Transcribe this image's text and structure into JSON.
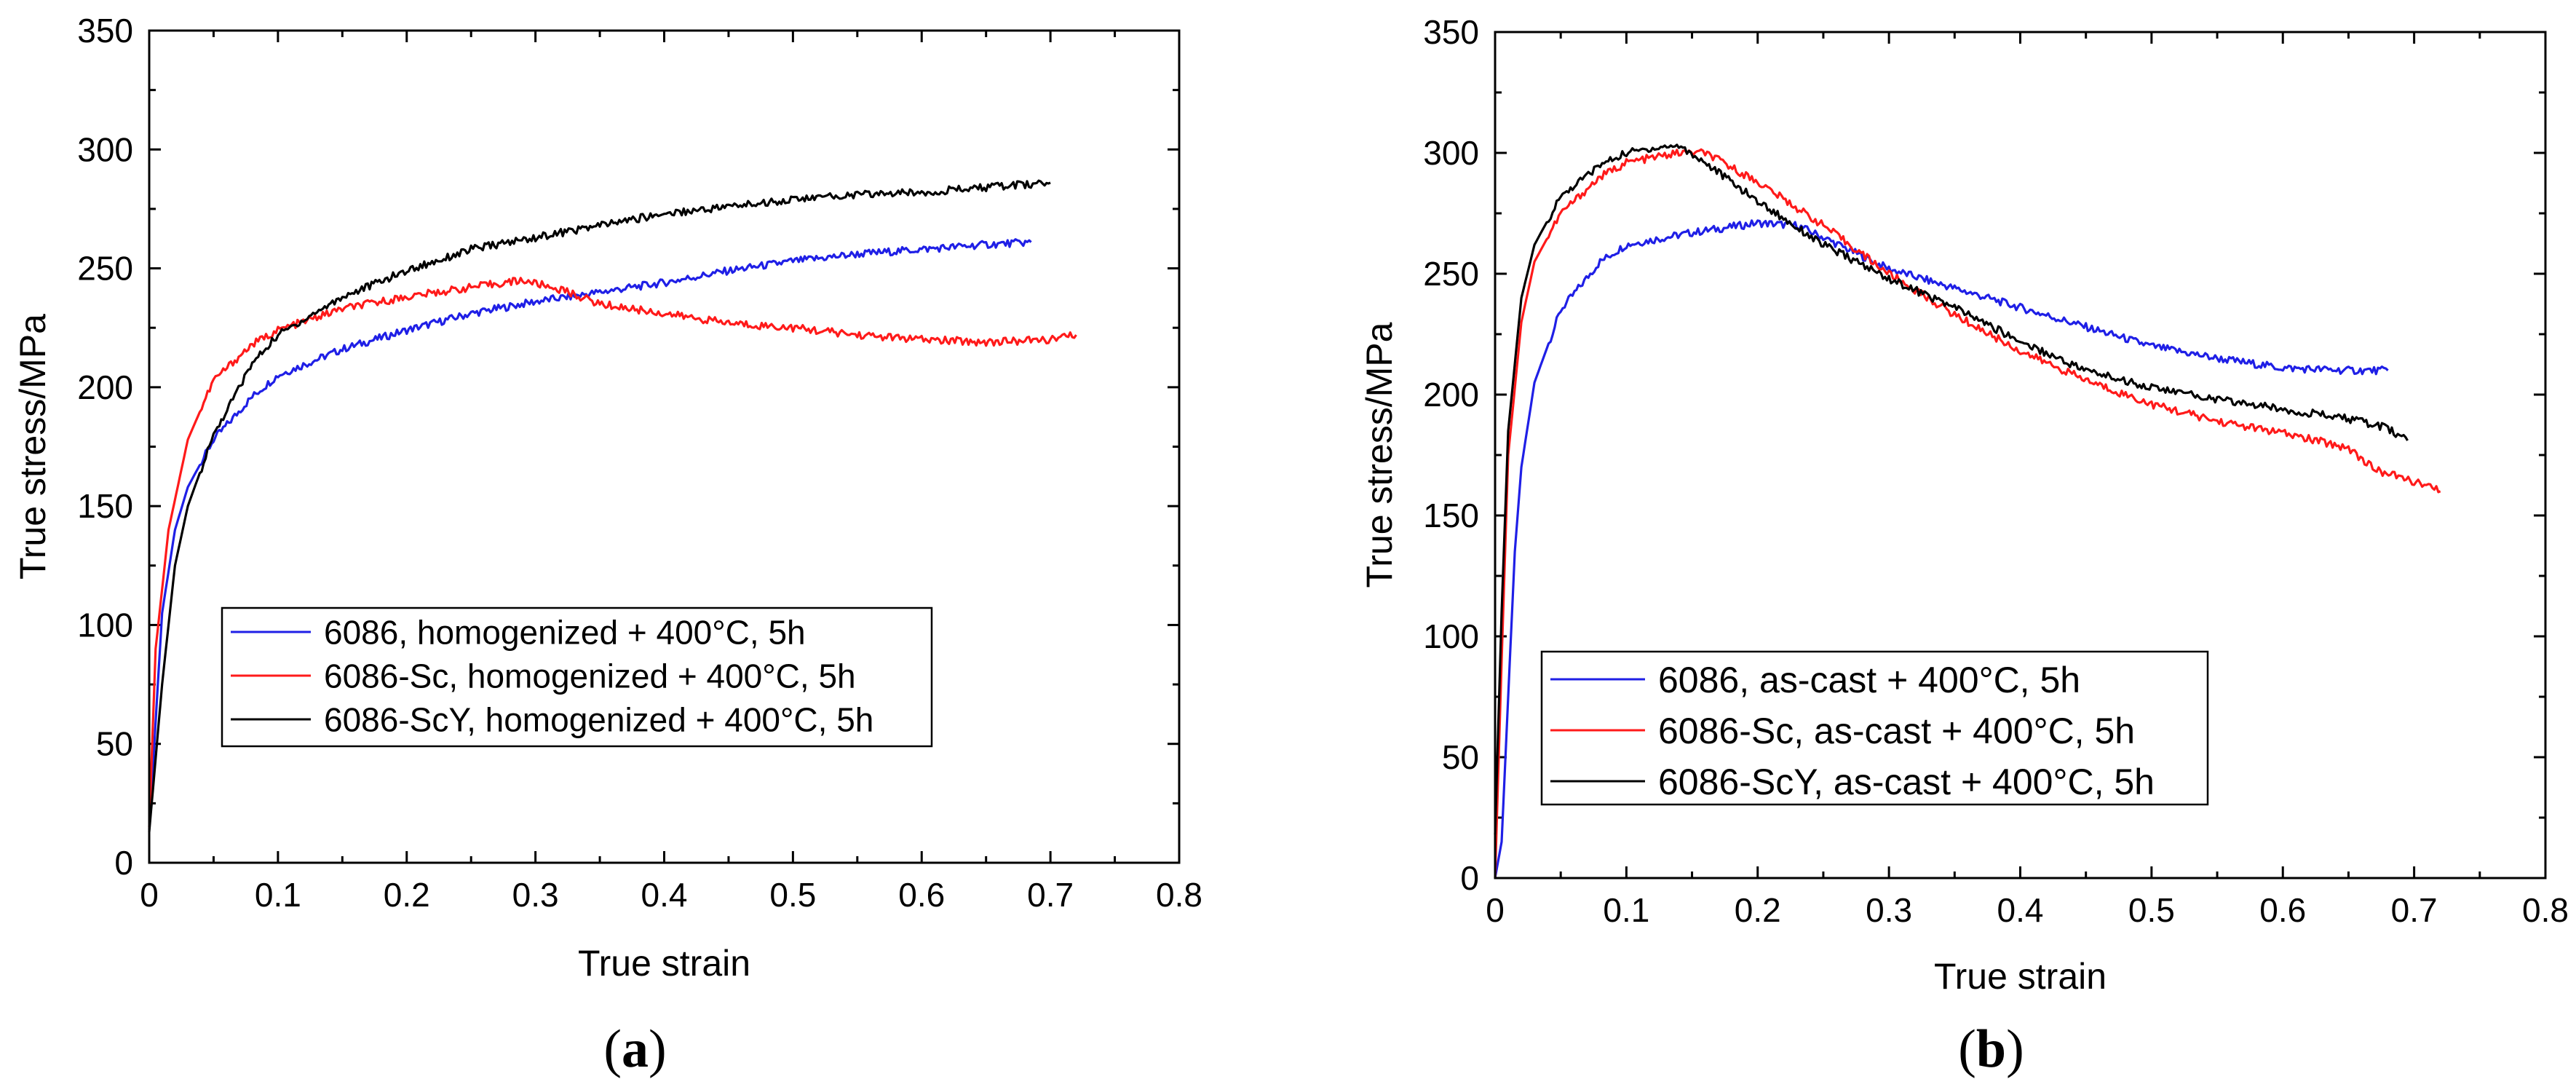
{
  "chart_data": [
    {
      "panel_label": {
        "open": "(",
        "letter": "a",
        "close": ")"
      },
      "type": "line",
      "xlabel": "True strain",
      "ylabel": "True stress/MPa",
      "xlim": [
        0,
        0.8
      ],
      "ylim": [
        0,
        350
      ],
      "xticks": [
        "0",
        "0.1",
        "0.2",
        "0.3",
        "0.4",
        "0.5",
        "0.6",
        "0.7",
        "0.8"
      ],
      "yticks": [
        "0",
        "50",
        "100",
        "150",
        "200",
        "250",
        "300",
        "350"
      ],
      "legend_position": "lower-middle",
      "series": [
        {
          "name": "6086, homogenized + 400°C, 5h",
          "color": "#1f1fe6",
          "points": [
            [
              0,
              14
            ],
            [
              0.01,
              105
            ],
            [
              0.02,
              140
            ],
            [
              0.03,
              158
            ],
            [
              0.05,
              178
            ],
            [
              0.08,
              196
            ],
            [
              0.1,
              205
            ],
            [
              0.15,
              216
            ],
            [
              0.2,
              224
            ],
            [
              0.25,
              231
            ],
            [
              0.3,
              236
            ],
            [
              0.35,
              240
            ],
            [
              0.4,
              244
            ],
            [
              0.45,
              249
            ],
            [
              0.5,
              253
            ],
            [
              0.55,
              256
            ],
            [
              0.6,
              258
            ],
            [
              0.65,
              260
            ],
            [
              0.685,
              261
            ]
          ]
        },
        {
          "name": "6086-Sc, homogenized + 400°C, 5h",
          "color": "#ff1a1a",
          "points": [
            [
              0,
              15
            ],
            [
              0.005,
              90
            ],
            [
              0.015,
              140
            ],
            [
              0.03,
              178
            ],
            [
              0.05,
              203
            ],
            [
              0.08,
              218
            ],
            [
              0.1,
              224
            ],
            [
              0.15,
              233
            ],
            [
              0.2,
              238
            ],
            [
              0.25,
              242
            ],
            [
              0.29,
              245
            ],
            [
              0.32,
              241
            ],
            [
              0.35,
              235
            ],
            [
              0.4,
              231
            ],
            [
              0.45,
              227
            ],
            [
              0.5,
              225
            ],
            [
              0.55,
              222
            ],
            [
              0.6,
              220
            ],
            [
              0.65,
              219
            ],
            [
              0.7,
              220
            ],
            [
              0.72,
              222
            ]
          ]
        },
        {
          "name": "6086-ScY, homogenized + 400°C, 5h",
          "color": "#000000",
          "points": [
            [
              0,
              13
            ],
            [
              0.01,
              75
            ],
            [
              0.02,
              125
            ],
            [
              0.03,
              150
            ],
            [
              0.05,
              180
            ],
            [
              0.08,
              210
            ],
            [
              0.1,
              222
            ],
            [
              0.15,
              238
            ],
            [
              0.2,
              249
            ],
            [
              0.25,
              258
            ],
            [
              0.3,
              263
            ],
            [
              0.35,
              268
            ],
            [
              0.4,
              273
            ],
            [
              0.45,
              276
            ],
            [
              0.5,
              279
            ],
            [
              0.55,
              281
            ],
            [
              0.6,
              282
            ],
            [
              0.65,
              284
            ],
            [
              0.7,
              286
            ]
          ]
        }
      ]
    },
    {
      "panel_label": {
        "open": "(",
        "letter": "b",
        "close": ")"
      },
      "type": "line",
      "xlabel": "True strain",
      "ylabel": "True stress/MPa",
      "xlim": [
        0,
        0.8
      ],
      "ylim": [
        0,
        350
      ],
      "xticks": [
        "0",
        "0.1",
        "0.2",
        "0.3",
        "0.4",
        "0.5",
        "0.6",
        "0.7",
        "0.8"
      ],
      "yticks": [
        "0",
        "50",
        "100",
        "150",
        "200",
        "250",
        "300",
        "350"
      ],
      "legend_position": "lower-left",
      "series": [
        {
          "name": "6086, as-cast + 400°C, 5h",
          "color": "#1f1fe6",
          "points": [
            [
              0,
              0
            ],
            [
              0.005,
              15
            ],
            [
              0.01,
              75
            ],
            [
              0.015,
              135
            ],
            [
              0.02,
              170
            ],
            [
              0.03,
              205
            ],
            [
              0.05,
              235
            ],
            [
              0.08,
              255
            ],
            [
              0.1,
              262
            ],
            [
              0.15,
              267
            ],
            [
              0.2,
              271
            ],
            [
              0.23,
              270
            ],
            [
              0.25,
              265
            ],
            [
              0.3,
              252
            ],
            [
              0.35,
              244
            ],
            [
              0.4,
              236
            ],
            [
              0.45,
              228
            ],
            [
              0.5,
              220
            ],
            [
              0.55,
              215
            ],
            [
              0.6,
              211
            ],
            [
              0.65,
              210
            ],
            [
              0.68,
              210
            ]
          ]
        },
        {
          "name": "6086-Sc, as-cast + 400°C, 5h",
          "color": "#ff1a1a",
          "points": [
            [
              0,
              0
            ],
            [
              0.005,
              90
            ],
            [
              0.01,
              175
            ],
            [
              0.02,
              230
            ],
            [
              0.03,
              255
            ],
            [
              0.05,
              275
            ],
            [
              0.08,
              290
            ],
            [
              0.1,
              296
            ],
            [
              0.12,
              298
            ],
            [
              0.14,
              300
            ],
            [
              0.16,
              300
            ],
            [
              0.2,
              288
            ],
            [
              0.25,
              270
            ],
            [
              0.3,
              250
            ],
            [
              0.35,
              233
            ],
            [
              0.4,
              218
            ],
            [
              0.45,
              206
            ],
            [
              0.5,
              196
            ],
            [
              0.55,
              189
            ],
            [
              0.6,
              184
            ],
            [
              0.65,
              178
            ],
            [
              0.67,
              169
            ],
            [
              0.7,
              164
            ],
            [
              0.72,
              160
            ]
          ]
        },
        {
          "name": "6086-ScY, as-cast + 400°C, 5h",
          "color": "#000000",
          "points": [
            [
              0,
              18
            ],
            [
              0.005,
              110
            ],
            [
              0.01,
              185
            ],
            [
              0.02,
              240
            ],
            [
              0.03,
              262
            ],
            [
              0.05,
              282
            ],
            [
              0.08,
              295
            ],
            [
              0.1,
              300
            ],
            [
              0.12,
              302
            ],
            [
              0.14,
              303
            ],
            [
              0.16,
              296
            ],
            [
              0.2,
              280
            ],
            [
              0.25,
              262
            ],
            [
              0.3,
              248
            ],
            [
              0.35,
              236
            ],
            [
              0.4,
              222
            ],
            [
              0.45,
              210
            ],
            [
              0.5,
              203
            ],
            [
              0.55,
              198
            ],
            [
              0.6,
              194
            ],
            [
              0.65,
              190
            ],
            [
              0.68,
              186
            ],
            [
              0.695,
              181
            ]
          ]
        }
      ]
    }
  ]
}
